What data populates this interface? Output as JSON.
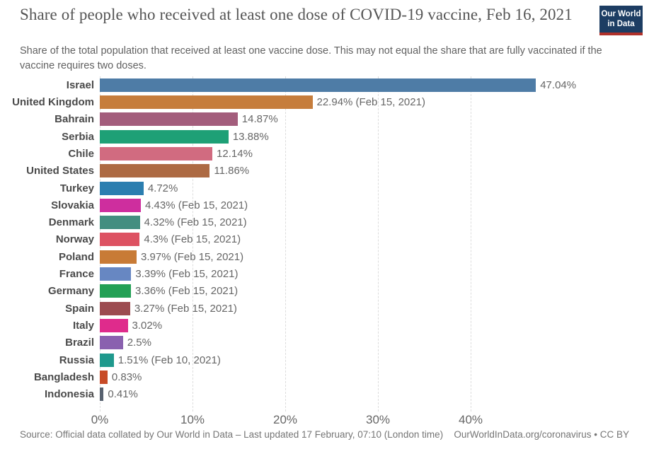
{
  "header": {
    "title": "Share of people who received at least one dose of COVID-19 vaccine, Feb 16, 2021",
    "subtitle": "Share of the total population that received at least one vaccine dose. This may not equal the share that are fully vaccinated if the vaccine requires two doses."
  },
  "logo": {
    "line1": "Our World",
    "line2": "in Data",
    "bg_color": "#1d3d63",
    "accent_color": "#b0312a"
  },
  "chart_data": {
    "type": "bar",
    "orientation": "horizontal",
    "title": "Share of people who received at least one dose of COVID-19 vaccine, Feb 16, 2021",
    "xlabel": "",
    "ylabel": "",
    "xlim": [
      0,
      48.5
    ],
    "grid": "dashed-vertical",
    "tick_values": [
      0,
      10,
      20,
      30,
      40
    ],
    "tick_labels": [
      "0%",
      "10%",
      "20%",
      "30%",
      "40%"
    ],
    "categories": [
      "Israel",
      "United Kingdom",
      "Bahrain",
      "Serbia",
      "Chile",
      "United States",
      "Turkey",
      "Slovakia",
      "Denmark",
      "Norway",
      "Poland",
      "France",
      "Germany",
      "Spain",
      "Italy",
      "Brazil",
      "Russia",
      "Bangladesh",
      "Indonesia"
    ],
    "values": [
      47.04,
      22.94,
      14.87,
      13.88,
      12.14,
      11.86,
      4.72,
      4.43,
      4.32,
      4.3,
      3.97,
      3.39,
      3.36,
      3.27,
      3.02,
      2.5,
      1.51,
      0.83,
      0.41
    ],
    "value_labels": [
      "47.04%",
      "22.94% (Feb 15, 2021)",
      "14.87%",
      "13.88%",
      "12.14%",
      "11.86%",
      "4.72%",
      "4.43% (Feb 15, 2021)",
      "4.32% (Feb 15, 2021)",
      "4.3% (Feb 15, 2021)",
      "3.97% (Feb 15, 2021)",
      "3.39% (Feb 15, 2021)",
      "3.36% (Feb 15, 2021)",
      "3.27% (Feb 15, 2021)",
      "3.02%",
      "2.5%",
      "1.51% (Feb 10, 2021)",
      "0.83%",
      "0.41%"
    ],
    "colors": [
      "#4e7ca6",
      "#c67d3c",
      "#a35d7c",
      "#1ea076",
      "#d16b80",
      "#ad6a43",
      "#2b7eb0",
      "#ce2e9e",
      "#438e80",
      "#dd5262",
      "#c87b36",
      "#6787c2",
      "#23a055",
      "#9c4b50",
      "#df2b8c",
      "#8a61af",
      "#1f998d",
      "#c74b27",
      "#57616f"
    ]
  },
  "footer": {
    "source": "Source: Official data collated by Our World in Data – Last updated 17 February, 07:10 (London time)",
    "link": "OurWorldInData.org/coronavirus • CC BY"
  }
}
